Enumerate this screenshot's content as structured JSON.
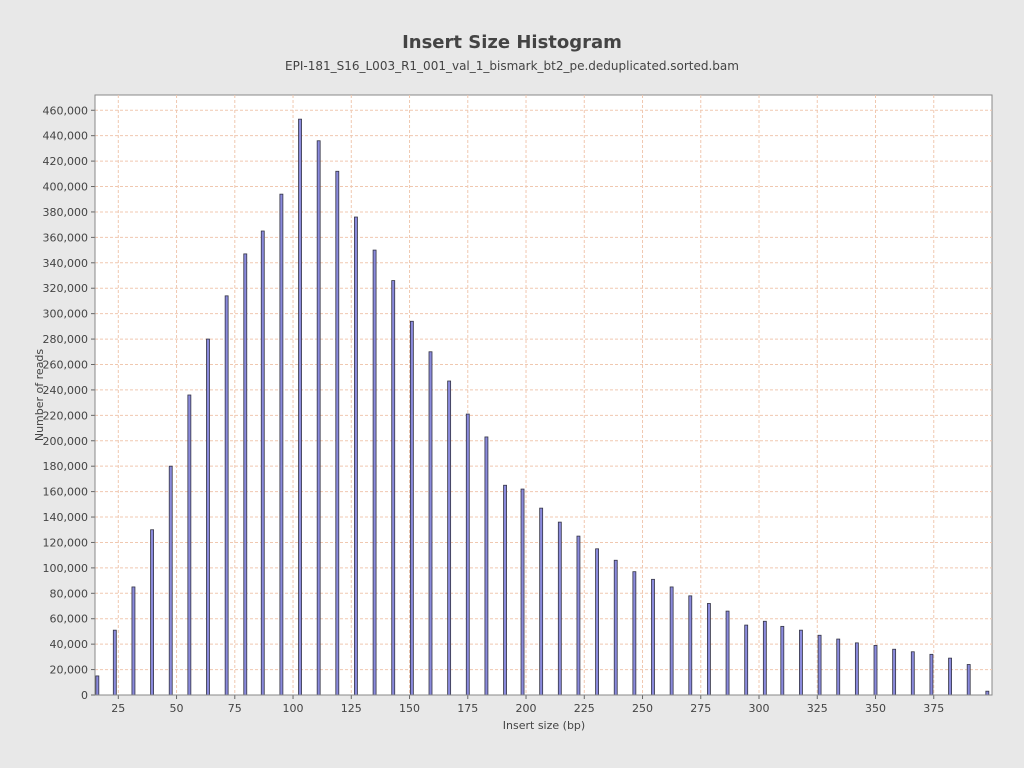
{
  "chart_data": {
    "type": "bar",
    "title": "Insert Size Histogram",
    "subtitle": "EPI-181_S16_L003_R1_001_val_1_bismark_bt2_pe.deduplicated.sorted.bam",
    "xlabel": "Insert size (bp)",
    "ylabel": "Number of reads",
    "xlim": [
      15,
      400
    ],
    "ylim": [
      0,
      472000
    ],
    "x_ticks": [
      25,
      50,
      75,
      100,
      125,
      150,
      175,
      200,
      225,
      250,
      275,
      300,
      325,
      350,
      375
    ],
    "y_ticks": [
      0,
      20000,
      40000,
      60000,
      80000,
      100000,
      120000,
      140000,
      160000,
      180000,
      200000,
      220000,
      240000,
      260000,
      280000,
      300000,
      320000,
      340000,
      360000,
      380000,
      400000,
      420000,
      440000,
      460000
    ],
    "grid": true,
    "bar_color": "#8a8adc",
    "points": [
      {
        "x": 16,
        "y": 15000
      },
      {
        "x": 23.5,
        "y": 51000
      },
      {
        "x": 31.5,
        "y": 85000
      },
      {
        "x": 39.5,
        "y": 130000
      },
      {
        "x": 47.5,
        "y": 180000
      },
      {
        "x": 55.5,
        "y": 236000
      },
      {
        "x": 63.5,
        "y": 280000
      },
      {
        "x": 71.5,
        "y": 314000
      },
      {
        "x": 79.5,
        "y": 347000
      },
      {
        "x": 87,
        "y": 365000
      },
      {
        "x": 95,
        "y": 394000
      },
      {
        "x": 103,
        "y": 453000
      },
      {
        "x": 111,
        "y": 436000
      },
      {
        "x": 119,
        "y": 412000
      },
      {
        "x": 127,
        "y": 376000
      },
      {
        "x": 135,
        "y": 350000
      },
      {
        "x": 143,
        "y": 326000
      },
      {
        "x": 151,
        "y": 294000
      },
      {
        "x": 159,
        "y": 270000
      },
      {
        "x": 167,
        "y": 247000
      },
      {
        "x": 175,
        "y": 221000
      },
      {
        "x": 183,
        "y": 203000
      },
      {
        "x": 191,
        "y": 165000
      },
      {
        "x": 198.5,
        "y": 162000
      },
      {
        "x": 206.5,
        "y": 147000
      },
      {
        "x": 214.5,
        "y": 136000
      },
      {
        "x": 222.5,
        "y": 125000
      },
      {
        "x": 230.5,
        "y": 115000
      },
      {
        "x": 238.5,
        "y": 106000
      },
      {
        "x": 246.5,
        "y": 97000
      },
      {
        "x": 254.5,
        "y": 91000
      },
      {
        "x": 262.5,
        "y": 85000
      },
      {
        "x": 270.5,
        "y": 78000
      },
      {
        "x": 278.5,
        "y": 72000
      },
      {
        "x": 286.5,
        "y": 66000
      },
      {
        "x": 294.5,
        "y": 55000
      },
      {
        "x": 302.5,
        "y": 58000
      },
      {
        "x": 310,
        "y": 54000
      },
      {
        "x": 318,
        "y": 51000
      },
      {
        "x": 326,
        "y": 47000
      },
      {
        "x": 334,
        "y": 44000
      },
      {
        "x": 342,
        "y": 41000
      },
      {
        "x": 350,
        "y": 39000
      },
      {
        "x": 358,
        "y": 36000
      },
      {
        "x": 366,
        "y": 34000
      },
      {
        "x": 374,
        "y": 32000
      },
      {
        "x": 382,
        "y": 29000
      },
      {
        "x": 390,
        "y": 24000
      },
      {
        "x": 398,
        "y": 3000
      }
    ]
  }
}
